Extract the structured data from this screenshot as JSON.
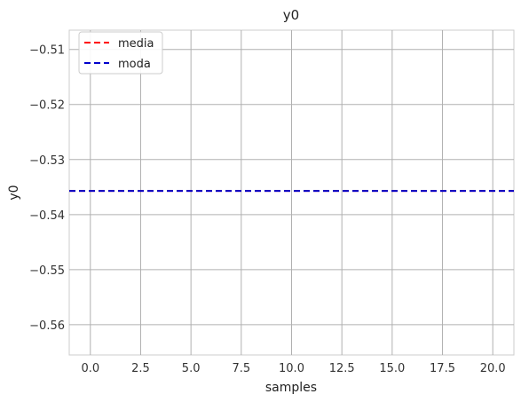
{
  "chart_data": {
    "type": "line",
    "title": "y0",
    "xlabel": "samples",
    "ylabel": "y0",
    "xlim": [
      -1.05,
      21.05
    ],
    "ylim": [
      -0.5655,
      -0.5065
    ],
    "x_ticks": [
      0.0,
      2.5,
      5.0,
      7.5,
      10.0,
      12.5,
      15.0,
      17.5,
      20.0
    ],
    "x_tick_labels": [
      "0.0",
      "2.5",
      "5.0",
      "7.5",
      "10.0",
      "12.5",
      "15.0",
      "17.5",
      "20.0"
    ],
    "y_ticks": [
      -0.51,
      -0.52,
      -0.53,
      -0.54,
      -0.55,
      -0.56
    ],
    "y_tick_labels": [
      "−0.51",
      "−0.52",
      "−0.53",
      "−0.54",
      "−0.55",
      "−0.56"
    ],
    "grid": true,
    "legend_position": "top-left",
    "series": [
      {
        "name": "media",
        "color": "#ff0000",
        "style": "dashed",
        "x": [
          -1.05,
          21.05
        ],
        "values": [
          -0.5357,
          -0.5357
        ]
      },
      {
        "name": "moda",
        "color": "#0000cc",
        "style": "dashed",
        "x": [
          -1.05,
          21.05
        ],
        "values": [
          -0.5357,
          -0.5357
        ]
      }
    ]
  }
}
